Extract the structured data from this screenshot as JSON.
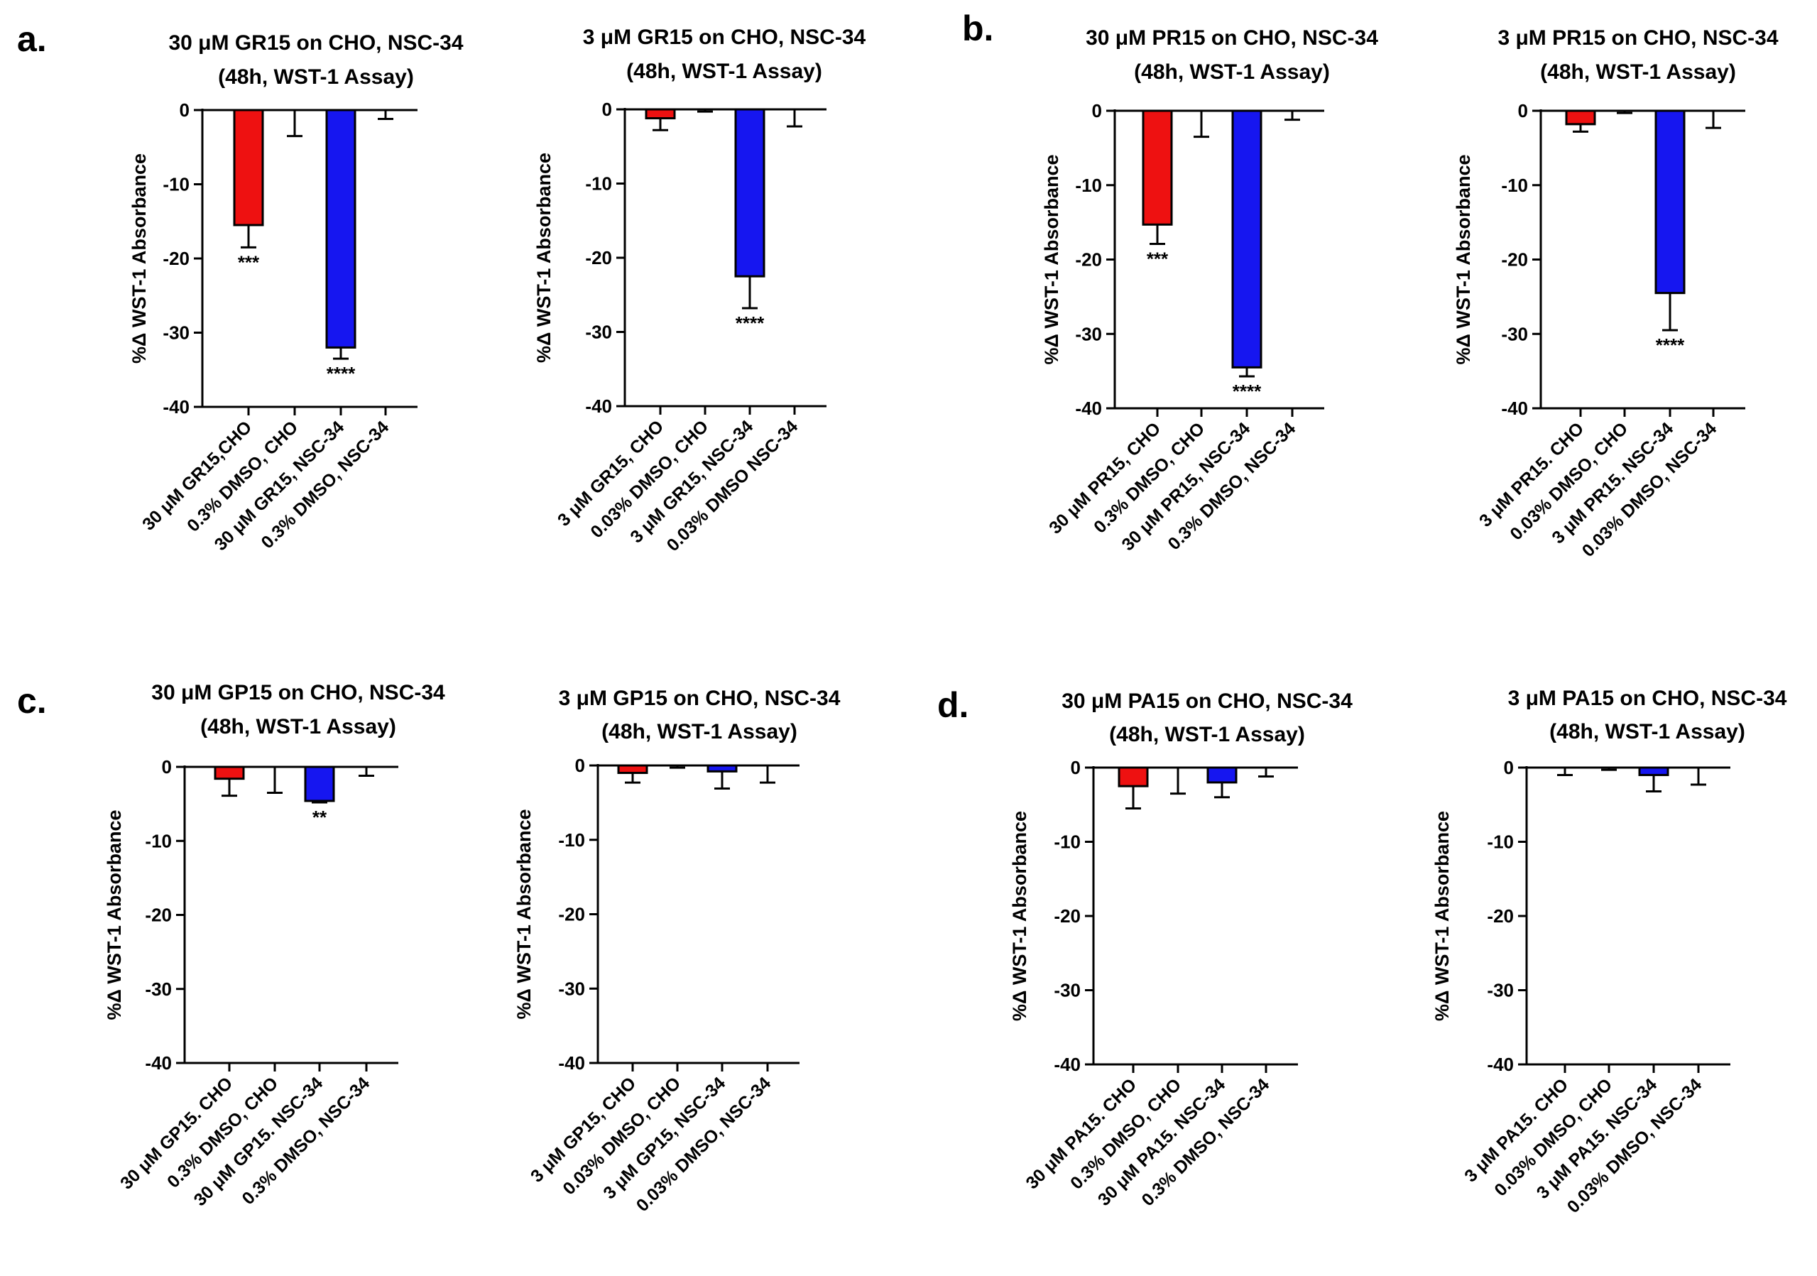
{
  "figure": {
    "panel_letters": [
      "a.",
      "b.",
      "c.",
      "d."
    ]
  },
  "colors": {
    "red": "#ee1111",
    "blue": "#1616f0",
    "white": "#ffffff",
    "axis": "#000000"
  },
  "chart_data": [
    {
      "type": "bar",
      "title_line1": "30 μM GR15 on CHO, NSC-34",
      "title_line2": "(48h, WST-1 Assay)",
      "ylabel": "%Δ WST-1 Absorbance",
      "ylim": [
        -40,
        0
      ],
      "yticks": [
        0,
        -10,
        -20,
        -30,
        -40
      ],
      "categories": [
        "30 μM GR15,CHO",
        "0.3% DMSO, CHO",
        "30 μM GR15, NSC-34",
        "0.3% DMSO, NSC-34"
      ],
      "values": [
        -15.5,
        0,
        -32,
        0
      ],
      "errors": [
        3,
        3.5,
        1.5,
        1.2
      ],
      "bar_colors": [
        "red",
        "white",
        "blue",
        "white"
      ],
      "significance": [
        "***",
        "",
        "****",
        ""
      ]
    },
    {
      "type": "bar",
      "title_line1": "3 μM GR15 on CHO, NSC-34",
      "title_line2": "(48h, WST-1 Assay)",
      "ylabel": "%Δ WST-1 Absorbance",
      "ylim": [
        -40,
        0
      ],
      "yticks": [
        0,
        -10,
        -20,
        -30,
        -40
      ],
      "categories": [
        "3 μM GR15, CHO",
        "0.03% DMSO, CHO",
        "3 μM GR15, NSC-34",
        "0.03% DMSO NSC-34"
      ],
      "values": [
        -1.2,
        0,
        -22.5,
        0
      ],
      "errors": [
        1.6,
        0.3,
        4.3,
        2.3
      ],
      "bar_colors": [
        "red",
        "white",
        "blue",
        "white"
      ],
      "significance": [
        "",
        "",
        "****",
        ""
      ]
    },
    {
      "type": "bar",
      "title_line1": "30 μM PR15 on CHO, NSC-34",
      "title_line2": "(48h, WST-1 Assay)",
      "ylabel": "%Δ WST-1 Absorbance",
      "ylim": [
        -40,
        0
      ],
      "yticks": [
        0,
        -10,
        -20,
        -30,
        -40
      ],
      "categories": [
        "30 μM PR15, CHO",
        "0.3% DMSO, CHO",
        "30 μM PR15, NSC-34",
        "0.3% DMSO, NSC-34"
      ],
      "values": [
        -15.3,
        0,
        -34.5,
        0
      ],
      "errors": [
        2.6,
        3.5,
        1.2,
        1.2
      ],
      "bar_colors": [
        "red",
        "white",
        "blue",
        "white"
      ],
      "significance": [
        "***",
        "",
        "****",
        ""
      ]
    },
    {
      "type": "bar",
      "title_line1": "3 μM PR15 on CHO, NSC-34",
      "title_line2": "(48h, WST-1 Assay)",
      "ylabel": "%Δ WST-1 Absorbance",
      "ylim": [
        -40,
        0
      ],
      "yticks": [
        0,
        -10,
        -20,
        -30,
        -40
      ],
      "categories": [
        "3 μM PR15. CHO",
        "0.03% DMSO, CHO",
        "3 μM PR15. NSC-34",
        "0.03% DMSO, NSC-34"
      ],
      "values": [
        -1.8,
        0,
        -24.5,
        0
      ],
      "errors": [
        1,
        0.3,
        5,
        2.3
      ],
      "bar_colors": [
        "red",
        "white",
        "blue",
        "white"
      ],
      "significance": [
        "",
        "",
        "****",
        ""
      ]
    },
    {
      "type": "bar",
      "title_line1": "30 μM GP15 on CHO, NSC-34",
      "title_line2": "(48h, WST-1 Assay)",
      "ylabel": "%Δ WST-1 Absorbance",
      "ylim": [
        -40,
        0
      ],
      "yticks": [
        0,
        -10,
        -20,
        -30,
        -40
      ],
      "categories": [
        "30 μM GP15. CHO",
        "0.3% DMSO, CHO",
        "30 μM GP15. NSC-34",
        "0.3% DMSO, NSC-34"
      ],
      "values": [
        -1.6,
        0,
        -4.6,
        0
      ],
      "errors": [
        2.3,
        3.5,
        0.2,
        1.2
      ],
      "bar_colors": [
        "red",
        "white",
        "blue",
        "white"
      ],
      "significance": [
        "",
        "",
        "**",
        ""
      ]
    },
    {
      "type": "bar",
      "title_line1": "3 μM GP15 on CHO, NSC-34",
      "title_line2": "(48h, WST-1 Assay)",
      "ylabel": "%Δ WST-1 Absorbance",
      "ylim": [
        -40,
        0
      ],
      "yticks": [
        0,
        -10,
        -20,
        -30,
        -40
      ],
      "categories": [
        "3 μM GP15, CHO",
        "0.03% DMSO, CHO",
        "3 μM GP15, NSC-34",
        "0.03% DMSO, NSC-34"
      ],
      "values": [
        -1,
        0,
        -0.8,
        0
      ],
      "errors": [
        1.3,
        0.3,
        2.3,
        2.3
      ],
      "bar_colors": [
        "red",
        "white",
        "blue",
        "white"
      ],
      "significance": [
        "",
        "",
        "",
        ""
      ]
    },
    {
      "type": "bar",
      "title_line1": "30 μM PA15 on CHO, NSC-34",
      "title_line2": "(48h, WST-1 Assay)",
      "ylabel": "%Δ WST-1 Absorbance",
      "ylim": [
        -40,
        0
      ],
      "yticks": [
        0,
        -10,
        -20,
        -30,
        -40
      ],
      "categories": [
        "30 μM PA15. CHO",
        "0.3% DMSO, CHO",
        "30 μM PA15. NSC-34",
        "0.3% DMSO, NSC-34"
      ],
      "values": [
        -2.5,
        0,
        -2,
        0
      ],
      "errors": [
        3,
        3.5,
        2,
        1.2
      ],
      "bar_colors": [
        "red",
        "white",
        "blue",
        "white"
      ],
      "significance": [
        "",
        "",
        "",
        ""
      ]
    },
    {
      "type": "bar",
      "title_line1": "3 μM PA15 on CHO, NSC-34",
      "title_line2": "(48h, WST-1 Assay)",
      "ylabel": "%Δ WST-1 Absorbance",
      "ylim": [
        -40,
        0
      ],
      "yticks": [
        0,
        -10,
        -20,
        -30,
        -40
      ],
      "categories": [
        "3 μM PA15. CHO",
        "0.03% DMSO, CHO",
        "3 μM PA15. NSC-34",
        "0.03% DMSO, NSC-34"
      ],
      "values": [
        0,
        0,
        -1,
        0
      ],
      "errors": [
        1,
        0.3,
        2.2,
        2.3
      ],
      "bar_colors": [
        "red",
        "white",
        "blue",
        "white"
      ],
      "significance": [
        "",
        "",
        "",
        ""
      ]
    }
  ]
}
